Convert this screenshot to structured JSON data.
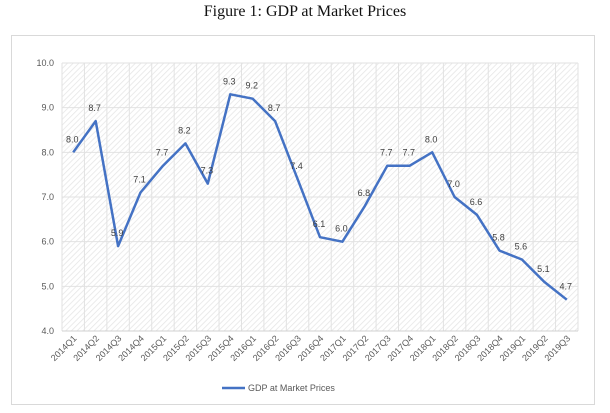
{
  "figure": {
    "caption": "Figure 1: GDP at Market Prices"
  },
  "colors": {
    "series": "#4472c4",
    "grid": "#e2e2e2",
    "plot_hatch": "#ebebeb"
  },
  "chart_data": {
    "type": "line",
    "title": "",
    "xlabel": "",
    "ylabel": "",
    "ylim": [
      4.0,
      10.0
    ],
    "yticks": [
      "4.0",
      "5.0",
      "6.0",
      "7.0",
      "8.0",
      "9.0",
      "10.0"
    ],
    "grid": true,
    "legend_position": "bottom",
    "categories": [
      "2014Q1",
      "2014Q2",
      "2014Q3",
      "2014Q4",
      "2015Q1",
      "2015Q2",
      "2015Q3",
      "2015Q4",
      "2016Q1",
      "2016Q2",
      "2016Q3",
      "2016Q4",
      "2017Q1",
      "2017Q2",
      "2017Q3",
      "2017Q4",
      "2018Q1",
      "2018Q2",
      "2018Q3",
      "2018Q4",
      "2019Q1",
      "2019Q2",
      "2019Q3"
    ],
    "series": [
      {
        "name": "GDP at Market Prices",
        "values": [
          8.0,
          8.7,
          5.9,
          7.1,
          7.7,
          8.2,
          7.3,
          9.3,
          9.2,
          8.7,
          7.4,
          6.1,
          6.0,
          6.8,
          7.7,
          7.7,
          8.0,
          7.0,
          6.6,
          5.8,
          5.6,
          5.1,
          4.7
        ],
        "data_labels": [
          "8.0",
          "8.7",
          "5.9",
          "7.1",
          "7.7",
          "8.2",
          "7.3",
          "9.3",
          "9.2",
          "8.7",
          "7.4",
          "6.1",
          "6.0",
          "6.8",
          "7.7",
          "7.7",
          "8.0",
          "7.0",
          "6.6",
          "5.8",
          "5.6",
          "5.1",
          "4.7"
        ]
      }
    ]
  }
}
